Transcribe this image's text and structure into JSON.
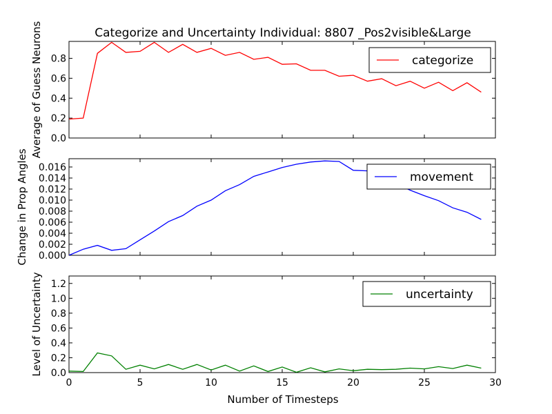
{
  "chart_data": [
    {
      "type": "line",
      "title": "Categorize and Uncertainty Individual: 8807 _Pos2visible&Large",
      "ylabel": "Average of Guess Neurons",
      "xlim": [
        0,
        30
      ],
      "ylim": [
        0.0,
        0.97
      ],
      "yticks": [
        "0.0",
        "0.2",
        "0.4",
        "0.6",
        "0.8"
      ],
      "legend": "top-right",
      "series": [
        {
          "name": "categorize",
          "color": "#ff0000",
          "x": [
            0,
            1,
            2,
            3,
            4,
            5,
            6,
            7,
            8,
            9,
            10,
            11,
            12,
            13,
            14,
            15,
            16,
            17,
            18,
            19,
            20,
            21,
            22,
            23,
            24,
            25,
            26,
            27,
            28,
            29
          ],
          "values": [
            0.19,
            0.2,
            0.85,
            0.96,
            0.86,
            0.87,
            0.96,
            0.86,
            0.94,
            0.86,
            0.9,
            0.83,
            0.86,
            0.79,
            0.81,
            0.74,
            0.745,
            0.68,
            0.68,
            0.62,
            0.63,
            0.57,
            0.595,
            0.525,
            0.57,
            0.5,
            0.56,
            0.475,
            0.555,
            0.46
          ]
        }
      ]
    },
    {
      "type": "line",
      "ylabel": "Change in Prop Angles",
      "xlim": [
        0,
        30
      ],
      "ylim": [
        0.0,
        0.0175
      ],
      "yticks": [
        "0.000",
        "0.002",
        "0.004",
        "0.006",
        "0.008",
        "0.010",
        "0.012",
        "0.014",
        "0.016"
      ],
      "legend": "top-right",
      "series": [
        {
          "name": "movement",
          "color": "#0000ff",
          "x": [
            0,
            1,
            2,
            3,
            4,
            5,
            6,
            7,
            8,
            9,
            10,
            11,
            12,
            13,
            14,
            15,
            16,
            17,
            18,
            19,
            20,
            21,
            22,
            23,
            24,
            25,
            26,
            27,
            28,
            29
          ],
          "values": [
            0.0,
            0.0011,
            0.0018,
            0.0009,
            0.0012,
            0.0028,
            0.0044,
            0.0061,
            0.0072,
            0.0089,
            0.01,
            0.0117,
            0.0128,
            0.0143,
            0.0151,
            0.0159,
            0.0165,
            0.0169,
            0.0171,
            0.017,
            0.0154,
            0.0153,
            0.0145,
            0.013,
            0.0118,
            0.0108,
            0.0099,
            0.0086,
            0.0078,
            0.0065
          ]
        }
      ]
    },
    {
      "type": "line",
      "ylabel": "Level of Uncertainty",
      "xlabel": "Number of Timesteps",
      "xlim": [
        0,
        30
      ],
      "ylim": [
        0.0,
        1.3
      ],
      "xticks": [
        "0",
        "5",
        "10",
        "15",
        "20",
        "25",
        "30"
      ],
      "yticks": [
        "0.0",
        "0.2",
        "0.4",
        "0.6",
        "0.8",
        "1.0",
        "1.2"
      ],
      "legend": "top-right",
      "series": [
        {
          "name": "uncertainty",
          "color": "#008000",
          "x": [
            0,
            1,
            2,
            3,
            4,
            5,
            6,
            7,
            8,
            9,
            10,
            11,
            12,
            13,
            14,
            15,
            16,
            17,
            18,
            19,
            20,
            21,
            22,
            23,
            24,
            25,
            26,
            27,
            28,
            29
          ],
          "values": [
            0.02,
            0.015,
            0.265,
            0.225,
            0.045,
            0.1,
            0.05,
            0.11,
            0.045,
            0.11,
            0.035,
            0.1,
            0.02,
            0.09,
            0.015,
            0.075,
            0.005,
            0.065,
            0.01,
            0.05,
            0.025,
            0.045,
            0.04,
            0.045,
            0.06,
            0.05,
            0.08,
            0.055,
            0.1,
            0.06
          ]
        }
      ]
    }
  ]
}
